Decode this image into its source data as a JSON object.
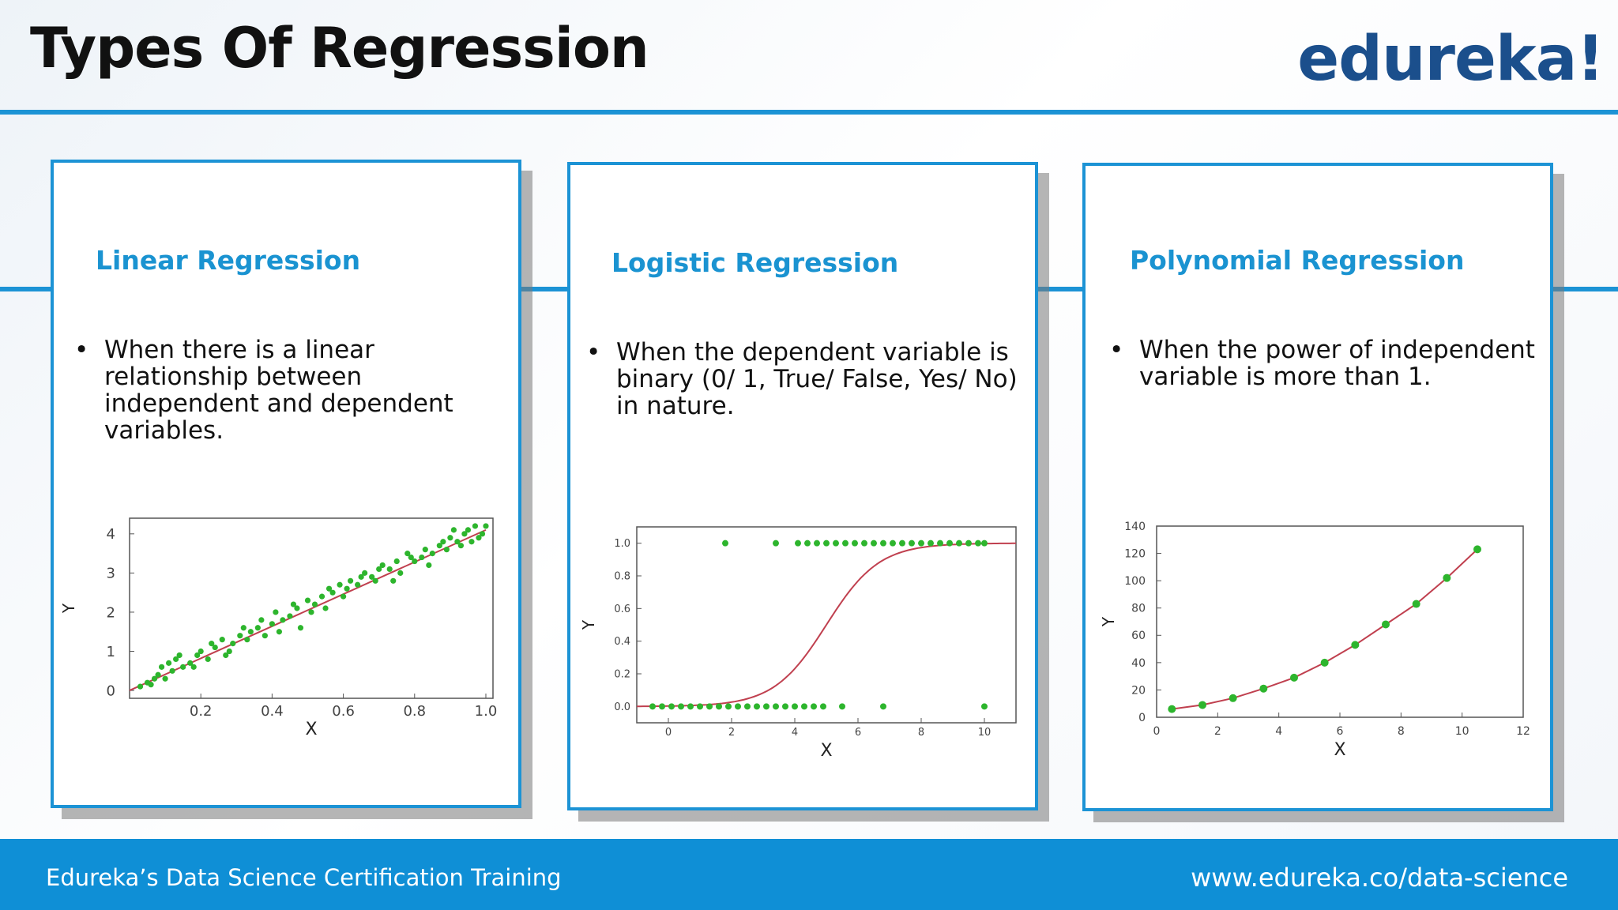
{
  "slide": {
    "title": "Types Of Regression",
    "logo": "edureka!"
  },
  "cards": [
    {
      "heading": "Linear Regression",
      "bullet": "When there is a linear relationship between independent and dependent variables."
    },
    {
      "heading": "Logistic Regression",
      "bullet": "When the dependent variable is binary (0/ 1, True/ False, Yes/ No) in nature."
    },
    {
      "heading": "Polynomial Regression",
      "bullet": "When the power of independent variable is more than 1."
    }
  ],
  "bullet_symbol": "•",
  "footer": {
    "left": "Edureka’s Data Science Certification Training",
    "right": "www.edureka.co/data-science"
  },
  "colors": {
    "accent": "#1c93d5",
    "heading": "#1a93d1",
    "point": "#2db52d",
    "fit_line": "#c0404f"
  },
  "chart_data": [
    {
      "type": "scatter",
      "title": "",
      "xlabel": "X",
      "ylabel": "Y",
      "xlim": [
        0.0,
        1.02
      ],
      "ylim": [
        -0.2,
        4.4
      ],
      "xticks": [
        "0.2",
        "0.4",
        "0.6",
        "0.8",
        "1.0"
      ],
      "yticks": [
        "0",
        "1",
        "2",
        "3",
        "4"
      ],
      "xtick_values": [
        0.2,
        0.4,
        0.6,
        0.8,
        1.0
      ],
      "ytick_values": [
        0,
        1,
        2,
        3,
        4
      ],
      "fit_line": {
        "x": [
          0.0,
          1.0
        ],
        "y": [
          0.0,
          4.1
        ]
      },
      "points": {
        "x": [
          0.03,
          0.05,
          0.06,
          0.08,
          0.09,
          0.1,
          0.12,
          0.13,
          0.15,
          0.17,
          0.19,
          0.2,
          0.22,
          0.24,
          0.26,
          0.27,
          0.29,
          0.31,
          0.33,
          0.34,
          0.36,
          0.38,
          0.4,
          0.41,
          0.43,
          0.45,
          0.47,
          0.48,
          0.5,
          0.52,
          0.54,
          0.55,
          0.57,
          0.59,
          0.61,
          0.62,
          0.64,
          0.66,
          0.68,
          0.69,
          0.71,
          0.73,
          0.75,
          0.76,
          0.78,
          0.8,
          0.82,
          0.83,
          0.85,
          0.87,
          0.89,
          0.9,
          0.92,
          0.93,
          0.94,
          0.95,
          0.96,
          0.97,
          0.98,
          0.99,
          1.0,
          0.07,
          0.11,
          0.14,
          0.18,
          0.23,
          0.28,
          0.32,
          0.37,
          0.42,
          0.46,
          0.51,
          0.56,
          0.6,
          0.65,
          0.7,
          0.74,
          0.79,
          0.84,
          0.88,
          0.91
        ],
        "y": [
          0.1,
          0.2,
          0.15,
          0.4,
          0.6,
          0.3,
          0.5,
          0.8,
          0.6,
          0.7,
          0.9,
          1.0,
          0.8,
          1.1,
          1.3,
          0.9,
          1.2,
          1.4,
          1.3,
          1.5,
          1.6,
          1.4,
          1.7,
          2.0,
          1.8,
          1.9,
          2.1,
          1.6,
          2.3,
          2.2,
          2.4,
          2.1,
          2.5,
          2.7,
          2.6,
          2.8,
          2.7,
          3.0,
          2.9,
          2.8,
          3.2,
          3.1,
          3.3,
          3.0,
          3.5,
          3.3,
          3.4,
          3.6,
          3.5,
          3.7,
          3.6,
          3.9,
          3.8,
          3.7,
          4.0,
          4.1,
          3.8,
          4.2,
          3.9,
          4.0,
          4.2,
          0.3,
          0.7,
          0.9,
          0.6,
          1.2,
          1.0,
          1.6,
          1.8,
          1.5,
          2.2,
          2.0,
          2.6,
          2.4,
          2.9,
          3.1,
          2.8,
          3.4,
          3.2,
          3.8,
          4.1
        ]
      }
    },
    {
      "type": "scatter",
      "title": "",
      "xlabel": "X",
      "ylabel": "Y",
      "xlim": [
        -1,
        11
      ],
      "ylim": [
        -0.1,
        1.1
      ],
      "xticks": [
        "0",
        "2",
        "4",
        "6",
        "8",
        "10"
      ],
      "yticks": [
        "0.0",
        "0.2",
        "0.4",
        "0.6",
        "0.8",
        "1.0"
      ],
      "xtick_values": [
        0,
        2,
        4,
        6,
        8,
        10
      ],
      "ytick_values": [
        0.0,
        0.2,
        0.4,
        0.6,
        0.8,
        1.0
      ],
      "fit_line": {
        "type": "sigmoid",
        "center": 5.0,
        "slope": 1.2
      },
      "points_y0": [
        -0.5,
        -0.2,
        0.1,
        0.4,
        0.7,
        1.0,
        1.3,
        1.6,
        1.9,
        2.2,
        2.5,
        2.8,
        3.1,
        3.4,
        3.7,
        4.0,
        4.3,
        4.6,
        4.9,
        5.5,
        6.8,
        10.0
      ],
      "points_y1": [
        1.8,
        3.4,
        4.1,
        4.4,
        4.7,
        5.0,
        5.3,
        5.6,
        5.9,
        6.2,
        6.5,
        6.8,
        7.1,
        7.4,
        7.7,
        8.0,
        8.3,
        8.6,
        8.9,
        9.2,
        9.5,
        9.8,
        10.0
      ]
    },
    {
      "type": "scatter",
      "title": "",
      "xlabel": "X",
      "ylabel": "Y",
      "xlim": [
        0,
        12
      ],
      "ylim": [
        0,
        140
      ],
      "xticks": [
        "0",
        "2",
        "4",
        "6",
        "8",
        "10",
        "12"
      ],
      "yticks": [
        "0",
        "20",
        "40",
        "60",
        "80",
        "100",
        "120",
        "140"
      ],
      "xtick_values": [
        0,
        2,
        4,
        6,
        8,
        10,
        12
      ],
      "ytick_values": [
        0,
        20,
        40,
        60,
        80,
        100,
        120,
        140
      ],
      "x": [
        0.5,
        1.5,
        2.5,
        3.5,
        4.5,
        5.5,
        6.5,
        7.5,
        8.5,
        9.5,
        10.5
      ],
      "y": [
        6,
        9,
        14,
        21,
        29,
        40,
        53,
        68,
        83,
        102,
        123
      ]
    }
  ]
}
